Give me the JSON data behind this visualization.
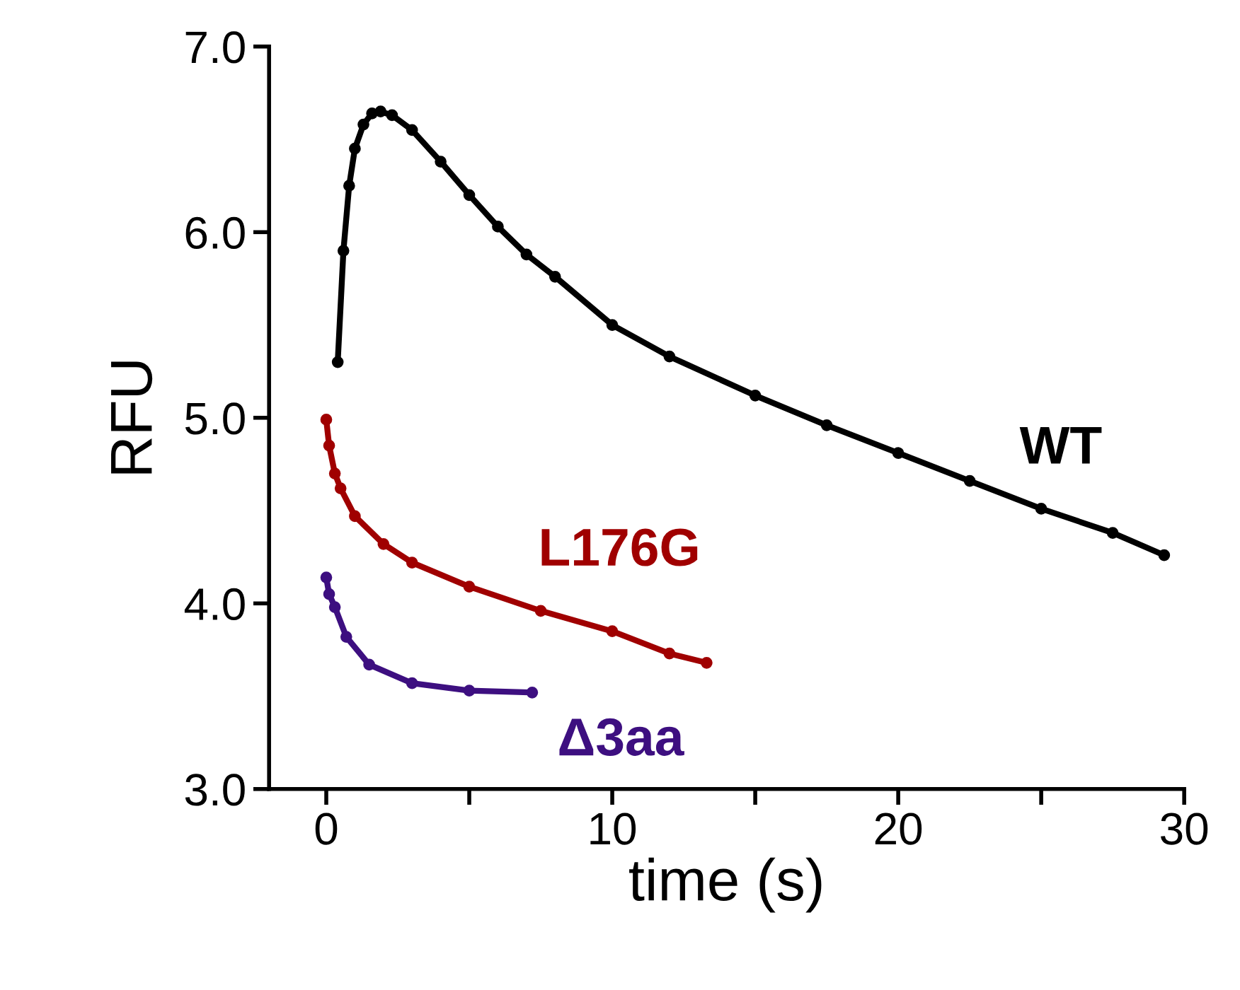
{
  "chart_data": {
    "type": "line",
    "xlabel": "time (s)",
    "ylabel": "RFU",
    "xlim": [
      -2,
      30
    ],
    "xticks": [
      0,
      {
        "value": 5,
        "label": null
      },
      10,
      {
        "value": 15,
        "label": null
      },
      20,
      {
        "value": 25,
        "label": null
      },
      30
    ],
    "ylim": [
      3.0,
      7.0
    ],
    "yticks": [
      {
        "value": 3,
        "label": "3.0"
      },
      {
        "value": 4,
        "label": "4.0"
      },
      {
        "value": 5,
        "label": "5.0"
      },
      {
        "value": 6,
        "label": "6.0"
      },
      {
        "value": 7,
        "label": "7.0"
      }
    ],
    "marker": "circle",
    "grid": false,
    "legend": false,
    "series": [
      {
        "name": "WT",
        "color": "#000000",
        "x": [
          0.4,
          0.6,
          0.8,
          1.0,
          1.3,
          1.6,
          1.9,
          2.3,
          3,
          4,
          5,
          6,
          7,
          8,
          10,
          12,
          15,
          17.5,
          20,
          22.5,
          25,
          27.5,
          29.3
        ],
        "values": [
          5.3,
          5.9,
          6.25,
          6.45,
          6.58,
          6.64,
          6.65,
          6.63,
          6.55,
          6.38,
          6.2,
          6.03,
          5.88,
          5.76,
          5.5,
          5.33,
          5.12,
          4.96,
          4.81,
          4.66,
          4.51,
          4.38,
          4.26
        ]
      },
      {
        "name": "L176G",
        "color": "#a00000",
        "x": [
          0,
          0.1,
          0.3,
          0.5,
          1,
          2,
          3,
          5,
          7.5,
          10,
          12,
          13.3
        ],
        "values": [
          4.99,
          4.85,
          4.7,
          4.62,
          4.47,
          4.32,
          4.22,
          4.09,
          3.96,
          3.85,
          3.73,
          3.68
        ]
      },
      {
        "name": "Δ3aa",
        "color": "#3d0f80",
        "x": [
          0,
          0.1,
          0.3,
          0.7,
          1.5,
          3,
          5,
          7.2
        ],
        "values": [
          4.14,
          4.05,
          3.98,
          3.82,
          3.67,
          3.57,
          3.53,
          3.52
        ]
      }
    ]
  }
}
